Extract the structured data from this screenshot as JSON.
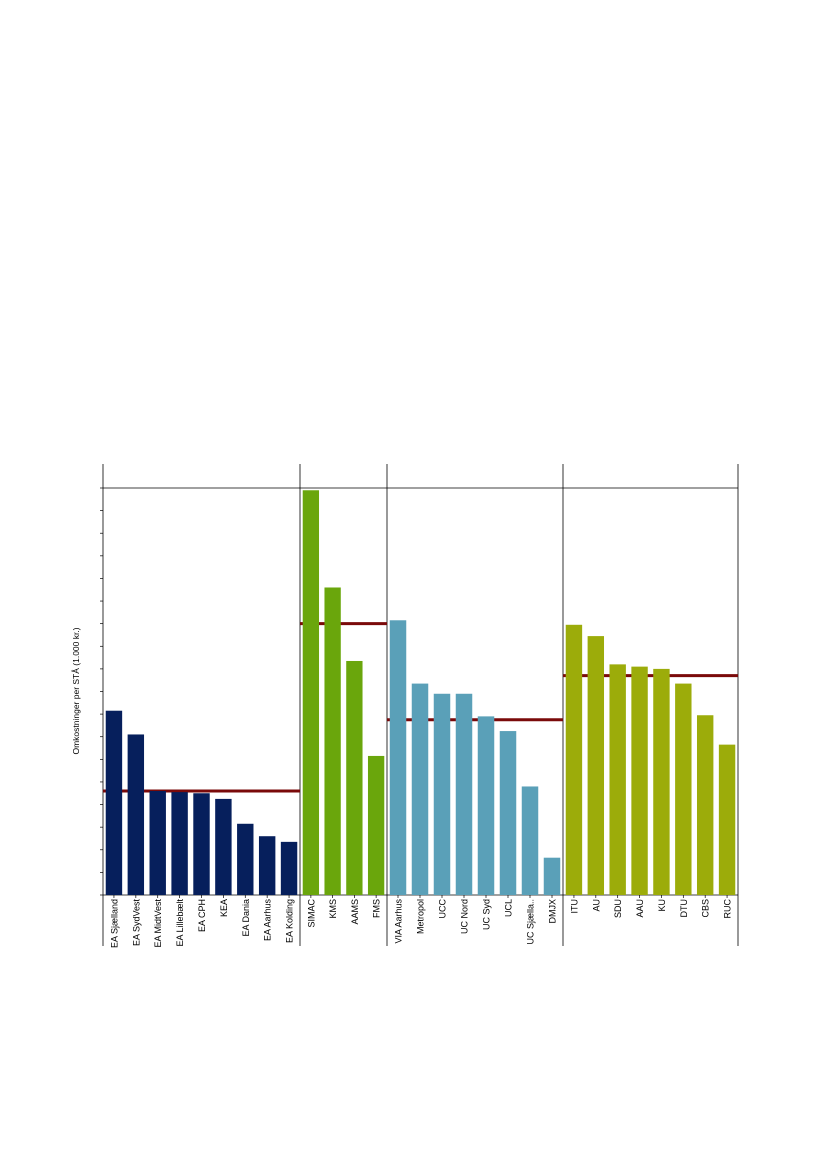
{
  "chart_data": {
    "type": "bar",
    "ylabel": "Omkostninger per STÅ (1.000 kr.)",
    "ylim": [
      0,
      180
    ],
    "ytick_step": 10,
    "y_tick_labels_shown": false,
    "colors": {
      "reference_line": "#7a0a0a",
      "frame": "#000000"
    },
    "groups": [
      {
        "color": "#061f5c",
        "average": 46,
        "categories": [
          "EA Sjælland",
          "EA SydVest",
          "EA MidtVest",
          "EA Lillebælt",
          "EA CPH",
          "KEA",
          "EA Dania",
          "EA Aarhus",
          "EA Kolding"
        ],
        "values": [
          81.5,
          71,
          46,
          45.5,
          45,
          42.5,
          31.5,
          26,
          23.5
        ]
      },
      {
        "color": "#6aa60c",
        "average": 120,
        "categories": [
          "SIMAC",
          "KMS",
          "AAMS",
          "FMS"
        ],
        "values": [
          179,
          136,
          103.5,
          61.5
        ]
      },
      {
        "color": "#5aa0b8",
        "average": 77.5,
        "categories": [
          "VIA Aarhus",
          "Metropol",
          "UCC",
          "UC Nord",
          "UC Syd",
          "UCL",
          "UC Sjælla..",
          "DMJX"
        ],
        "values": [
          121.5,
          93.5,
          89,
          89,
          79,
          72.5,
          48,
          16.5
        ]
      },
      {
        "color": "#9cac0a",
        "average": 97,
        "categories": [
          "ITU",
          "AU",
          "SDU",
          "AAU",
          "KU",
          "DTU",
          "CBS",
          "RUC"
        ],
        "values": [
          119.5,
          114.5,
          102,
          101,
          100,
          93.5,
          79.5,
          66.5
        ]
      }
    ]
  }
}
